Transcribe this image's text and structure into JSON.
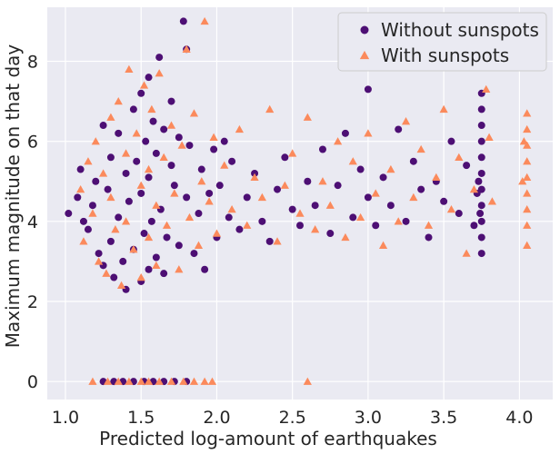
{
  "chart_data": {
    "type": "scatter",
    "title": "",
    "xlabel": "Predicted log-amount of earthquakes",
    "ylabel": "Maximum magnitude on that day",
    "xlim": [
      0.88,
      4.22
    ],
    "ylim": [
      -0.45,
      9.35
    ],
    "xticks": [
      1.0,
      1.5,
      2.0,
      2.5,
      3.0,
      3.5,
      4.0
    ],
    "yticks": [
      0,
      2,
      4,
      6,
      8
    ],
    "grid": true,
    "background": "#eaeaf2",
    "legend_position": "top-right",
    "series": [
      {
        "name": "Without sunspots",
        "marker": "circle",
        "color": "#4d0f74",
        "points": [
          [
            1.02,
            4.2
          ],
          [
            1.08,
            4.6
          ],
          [
            1.1,
            5.3
          ],
          [
            1.12,
            4.0
          ],
          [
            1.15,
            3.8
          ],
          [
            1.18,
            4.4
          ],
          [
            1.2,
            5.0
          ],
          [
            1.22,
            3.2
          ],
          [
            1.25,
            6.4
          ],
          [
            1.25,
            2.9
          ],
          [
            1.28,
            4.8
          ],
          [
            1.3,
            3.5
          ],
          [
            1.3,
            5.6
          ],
          [
            1.32,
            2.6
          ],
          [
            1.35,
            4.1
          ],
          [
            1.35,
            6.2
          ],
          [
            1.38,
            3.0
          ],
          [
            1.4,
            5.2
          ],
          [
            1.4,
            2.3
          ],
          [
            1.42,
            4.5
          ],
          [
            1.45,
            6.8
          ],
          [
            1.45,
            3.3
          ],
          [
            1.47,
            5.5
          ],
          [
            1.5,
            2.5
          ],
          [
            1.5,
            4.7
          ],
          [
            1.5,
            7.2
          ],
          [
            1.52,
            3.7
          ],
          [
            1.53,
            6.0
          ],
          [
            1.55,
            2.8
          ],
          [
            1.55,
            5.1
          ],
          [
            1.55,
            7.6
          ],
          [
            1.57,
            4.0
          ],
          [
            1.58,
            6.5
          ],
          [
            1.6,
            3.1
          ],
          [
            1.6,
            5.7
          ],
          [
            1.62,
            8.1
          ],
          [
            1.63,
            4.3
          ],
          [
            1.65,
            2.7
          ],
          [
            1.65,
            6.3
          ],
          [
            1.67,
            3.6
          ],
          [
            1.7,
            5.4
          ],
          [
            1.7,
            7.0
          ],
          [
            1.72,
            4.9
          ],
          [
            1.75,
            3.4
          ],
          [
            1.75,
            6.1
          ],
          [
            1.78,
            9.0
          ],
          [
            1.8,
            8.3
          ],
          [
            1.8,
            4.6
          ],
          [
            1.82,
            5.9
          ],
          [
            1.85,
            3.2
          ],
          [
            1.88,
            4.2
          ],
          [
            1.9,
            5.3
          ],
          [
            1.92,
            2.8
          ],
          [
            1.95,
            4.7
          ],
          [
            1.98,
            5.8
          ],
          [
            2.0,
            3.6
          ],
          [
            2.02,
            4.9
          ],
          [
            2.05,
            6.0
          ],
          [
            2.08,
            4.1
          ],
          [
            2.1,
            5.5
          ],
          [
            2.15,
            3.8
          ],
          [
            2.2,
            4.6
          ],
          [
            2.25,
            5.2
          ],
          [
            2.3,
            4.0
          ],
          [
            2.35,
            3.5
          ],
          [
            2.4,
            4.8
          ],
          [
            2.45,
            5.6
          ],
          [
            2.5,
            4.3
          ],
          [
            2.55,
            3.9
          ],
          [
            2.6,
            5.0
          ],
          [
            2.65,
            4.4
          ],
          [
            2.7,
            5.8
          ],
          [
            2.75,
            3.7
          ],
          [
            2.8,
            4.9
          ],
          [
            2.85,
            6.2
          ],
          [
            2.9,
            4.1
          ],
          [
            2.95,
            5.3
          ],
          [
            3.0,
            7.3
          ],
          [
            3.0,
            4.6
          ],
          [
            3.05,
            3.9
          ],
          [
            3.1,
            5.1
          ],
          [
            3.15,
            4.4
          ],
          [
            3.2,
            6.3
          ],
          [
            3.25,
            4.0
          ],
          [
            3.3,
            5.5
          ],
          [
            3.35,
            4.8
          ],
          [
            3.4,
            3.6
          ],
          [
            3.45,
            5.0
          ],
          [
            3.5,
            4.5
          ],
          [
            3.55,
            6.0
          ],
          [
            3.6,
            4.2
          ],
          [
            3.65,
            5.4
          ],
          [
            3.7,
            3.9
          ],
          [
            3.72,
            4.7
          ],
          [
            3.75,
            7.2
          ],
          [
            3.75,
            6.8
          ],
          [
            3.75,
            6.4
          ],
          [
            3.75,
            6.0
          ],
          [
            3.75,
            5.6
          ],
          [
            3.75,
            5.2
          ],
          [
            3.75,
            4.8
          ],
          [
            3.75,
            4.4
          ],
          [
            3.75,
            4.0
          ],
          [
            3.75,
            3.6
          ],
          [
            3.75,
            3.2
          ],
          [
            3.73,
            5.0
          ],
          [
            3.74,
            4.2
          ],
          [
            1.25,
            0
          ],
          [
            1.32,
            0
          ],
          [
            1.38,
            0
          ],
          [
            1.45,
            0
          ],
          [
            1.52,
            0
          ],
          [
            1.58,
            0
          ],
          [
            1.65,
            0
          ],
          [
            1.72,
            0
          ],
          [
            1.8,
            0
          ]
        ]
      },
      {
        "name": "With sunspots",
        "marker": "triangle",
        "color": "#fb8a5c",
        "points": [
          [
            1.1,
            4.8
          ],
          [
            1.12,
            3.5
          ],
          [
            1.15,
            5.5
          ],
          [
            1.18,
            4.2
          ],
          [
            1.2,
            6.0
          ],
          [
            1.22,
            3.0
          ],
          [
            1.25,
            5.2
          ],
          [
            1.27,
            2.7
          ],
          [
            1.3,
            4.6
          ],
          [
            1.3,
            6.6
          ],
          [
            1.33,
            3.8
          ],
          [
            1.35,
            7.0
          ],
          [
            1.37,
            2.4
          ],
          [
            1.4,
            5.7
          ],
          [
            1.4,
            4.0
          ],
          [
            1.42,
            7.8
          ],
          [
            1.45,
            3.3
          ],
          [
            1.47,
            6.2
          ],
          [
            1.5,
            4.9
          ],
          [
            1.5,
            2.6
          ],
          [
            1.52,
            7.4
          ],
          [
            1.55,
            5.3
          ],
          [
            1.55,
            3.6
          ],
          [
            1.57,
            6.8
          ],
          [
            1.6,
            4.4
          ],
          [
            1.6,
            2.9
          ],
          [
            1.62,
            7.7
          ],
          [
            1.65,
            5.6
          ],
          [
            1.67,
            3.9
          ],
          [
            1.7,
            6.4
          ],
          [
            1.72,
            4.7
          ],
          [
            1.75,
            2.8
          ],
          [
            1.77,
            5.9
          ],
          [
            1.8,
            8.3
          ],
          [
            1.82,
            4.1
          ],
          [
            1.85,
            6.7
          ],
          [
            1.88,
            3.4
          ],
          [
            1.9,
            5.0
          ],
          [
            1.92,
            9.0
          ],
          [
            1.95,
            4.5
          ],
          [
            1.98,
            6.1
          ],
          [
            2.0,
            3.7
          ],
          [
            2.05,
            5.4
          ],
          [
            2.1,
            4.3
          ],
          [
            2.15,
            6.3
          ],
          [
            2.2,
            3.9
          ],
          [
            2.25,
            5.1
          ],
          [
            2.3,
            4.6
          ],
          [
            2.35,
            6.8
          ],
          [
            2.4,
            3.5
          ],
          [
            2.45,
            4.9
          ],
          [
            2.5,
            5.7
          ],
          [
            2.55,
            4.2
          ],
          [
            2.6,
            6.6
          ],
          [
            2.65,
            3.8
          ],
          [
            2.7,
            5.0
          ],
          [
            2.75,
            4.4
          ],
          [
            2.8,
            6.0
          ],
          [
            2.85,
            3.6
          ],
          [
            2.9,
            5.5
          ],
          [
            2.95,
            4.1
          ],
          [
            3.0,
            6.2
          ],
          [
            3.05,
            4.7
          ],
          [
            3.1,
            3.4
          ],
          [
            3.15,
            5.3
          ],
          [
            3.2,
            4.0
          ],
          [
            3.25,
            6.5
          ],
          [
            3.3,
            4.6
          ],
          [
            3.35,
            5.8
          ],
          [
            3.4,
            3.9
          ],
          [
            3.45,
            5.1
          ],
          [
            3.5,
            6.8
          ],
          [
            3.55,
            4.3
          ],
          [
            3.6,
            5.6
          ],
          [
            3.65,
            3.2
          ],
          [
            3.7,
            4.8
          ],
          [
            3.78,
            7.3
          ],
          [
            3.8,
            6.1
          ],
          [
            3.82,
            4.5
          ],
          [
            4.05,
            6.7
          ],
          [
            4.05,
            6.3
          ],
          [
            4.05,
            5.9
          ],
          [
            4.05,
            5.5
          ],
          [
            4.05,
            5.1
          ],
          [
            4.05,
            4.7
          ],
          [
            4.05,
            4.3
          ],
          [
            4.05,
            3.9
          ],
          [
            4.05,
            3.4
          ],
          [
            4.03,
            6.0
          ],
          [
            4.02,
            5.0
          ],
          [
            1.18,
            0
          ],
          [
            1.28,
            0
          ],
          [
            1.35,
            0
          ],
          [
            1.42,
            0
          ],
          [
            1.5,
            0
          ],
          [
            1.55,
            0
          ],
          [
            1.62,
            0
          ],
          [
            1.7,
            0
          ],
          [
            1.78,
            0
          ],
          [
            1.85,
            0
          ],
          [
            1.92,
            0
          ],
          [
            1.97,
            0
          ],
          [
            2.6,
            0
          ]
        ]
      }
    ]
  }
}
